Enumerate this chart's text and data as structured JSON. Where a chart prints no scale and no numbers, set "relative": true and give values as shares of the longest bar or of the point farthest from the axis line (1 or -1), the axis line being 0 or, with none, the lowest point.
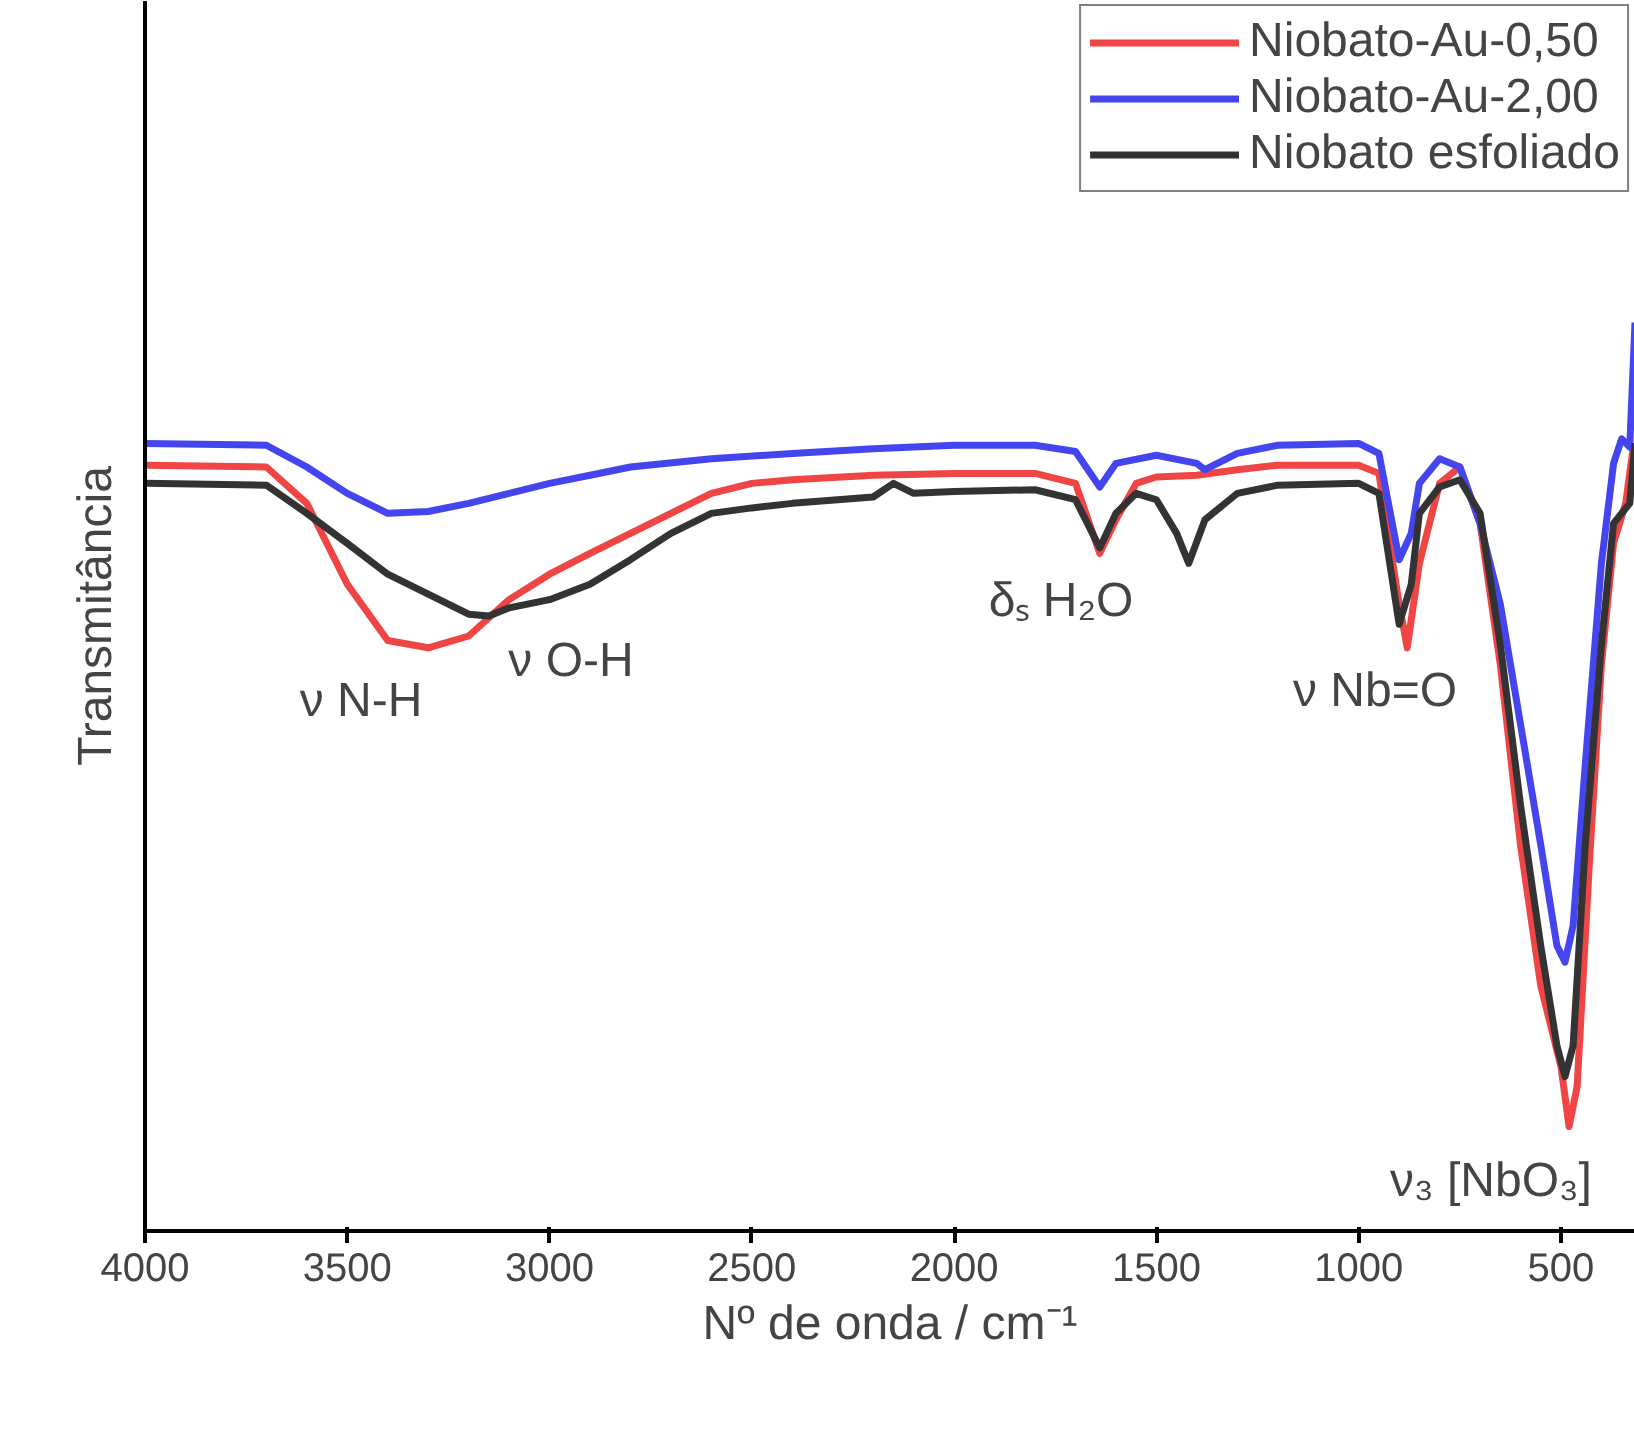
{
  "chart_data": {
    "type": "line",
    "relative": true,
    "xlabel": "Nº de onda / cm⁻¹",
    "ylabel": "Transmitância",
    "xlim": [
      4000,
      317
    ],
    "xticks": [
      4000,
      3500,
      3000,
      2500,
      2000,
      1500,
      1000,
      500
    ],
    "grid": false,
    "legend": "top right",
    "marker": "none",
    "line_style": "solid",
    "series": [
      {
        "name": "Niobato-Au-0,50",
        "color": "#f04545",
        "x": [
          4000,
          3700,
          3600,
          3500,
          3400,
          3300,
          3200,
          3100,
          3000,
          2900,
          2800,
          2700,
          2600,
          2500,
          2400,
          2200,
          2000,
          1800,
          1700,
          1640,
          1600,
          1550,
          1500,
          1400,
          1300,
          1200,
          1000,
          950,
          900,
          880,
          850,
          800,
          750,
          700,
          650,
          600,
          550,
          500,
          480,
          460,
          430,
          400,
          370,
          340,
          320
        ],
        "values": [
          0.843,
          0.841,
          0.801,
          0.712,
          0.65,
          0.642,
          0.655,
          0.695,
          0.723,
          0.746,
          0.768,
          0.79,
          0.812,
          0.823,
          0.827,
          0.832,
          0.834,
          0.834,
          0.823,
          0.746,
          0.783,
          0.823,
          0.83,
          0.832,
          0.838,
          0.843,
          0.843,
          0.834,
          0.69,
          0.642,
          0.735,
          0.823,
          0.841,
          0.779,
          0.624,
          0.425,
          0.27,
          0.181,
          0.115,
          0.159,
          0.403,
          0.624,
          0.757,
          0.801,
          0.867
        ]
      },
      {
        "name": "Niobato-Au-2,00",
        "color": "#4545f0",
        "x": [
          4000,
          3700,
          3600,
          3500,
          3400,
          3300,
          3200,
          3100,
          3000,
          2900,
          2800,
          2600,
          2400,
          2200,
          2000,
          1800,
          1700,
          1640,
          1600,
          1500,
          1400,
          1380,
          1300,
          1200,
          1000,
          950,
          900,
          870,
          850,
          800,
          750,
          700,
          650,
          600,
          550,
          510,
          490,
          470,
          440,
          400,
          370,
          350,
          330,
          317
        ],
        "values": [
          0.867,
          0.865,
          0.841,
          0.812,
          0.79,
          0.792,
          0.801,
          0.812,
          0.823,
          0.832,
          0.841,
          0.85,
          0.856,
          0.861,
          0.865,
          0.865,
          0.858,
          0.819,
          0.845,
          0.854,
          0.845,
          0.838,
          0.856,
          0.865,
          0.867,
          0.856,
          0.739,
          0.768,
          0.823,
          0.85,
          0.841,
          0.779,
          0.69,
          0.558,
          0.425,
          0.314,
          0.296,
          0.336,
          0.513,
          0.735,
          0.845,
          0.872,
          0.863,
          1.0
        ]
      },
      {
        "name": "Niobato esfoliado",
        "color": "#333333",
        "x": [
          4000,
          3700,
          3600,
          3500,
          3400,
          3300,
          3200,
          3150,
          3100,
          3000,
          2900,
          2800,
          2700,
          2600,
          2500,
          2400,
          2200,
          2150,
          2100,
          2000,
          1800,
          1700,
          1640,
          1600,
          1550,
          1500,
          1450,
          1420,
          1380,
          1300,
          1200,
          1000,
          950,
          900,
          870,
          850,
          800,
          750,
          700,
          650,
          600,
          550,
          510,
          490,
          470,
          440,
          400,
          370,
          330,
          317
        ],
        "values": [
          0.823,
          0.821,
          0.79,
          0.757,
          0.723,
          0.701,
          0.679,
          0.677,
          0.686,
          0.695,
          0.712,
          0.739,
          0.768,
          0.79,
          0.796,
          0.801,
          0.808,
          0.823,
          0.812,
          0.814,
          0.816,
          0.805,
          0.752,
          0.79,
          0.812,
          0.805,
          0.768,
          0.735,
          0.783,
          0.812,
          0.821,
          0.823,
          0.812,
          0.668,
          0.712,
          0.79,
          0.819,
          0.827,
          0.79,
          0.646,
          0.469,
          0.314,
          0.204,
          0.17,
          0.204,
          0.425,
          0.646,
          0.779,
          0.801,
          0.867
        ]
      }
    ],
    "annotations": [
      "ν N-H",
      "ν O-H",
      "δₛ H₂O",
      "ν Nb=O",
      "ν₃ [NbO₃]"
    ]
  }
}
